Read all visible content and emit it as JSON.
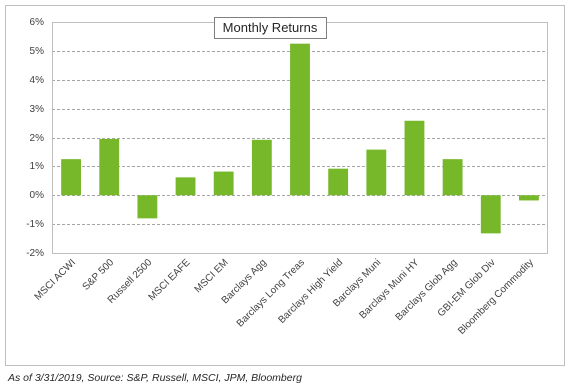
{
  "chart_data": {
    "type": "bar",
    "title": "Monthly Returns",
    "categories": [
      "MSCI ACWI",
      "S&P 500",
      "Russell 2500",
      "MSCI EAFE",
      "MSCI EM",
      "Barclays Agg",
      "Barclays Long Treas",
      "Barclays High Yield",
      "Barclays Muni",
      "Barclays Muni HY",
      "Barclays Glob Agg",
      "GBI-EM Glob Div",
      "Bloomberg Commodity"
    ],
    "values": [
      1.25,
      1.95,
      -0.8,
      0.62,
      0.82,
      1.92,
      5.25,
      0.92,
      1.58,
      2.58,
      1.25,
      -1.32,
      -0.18
    ],
    "color": "#76b82a",
    "ylim": [
      -2,
      6
    ],
    "yticks": [
      {
        "value": -2,
        "label": "-2%"
      },
      {
        "value": -1,
        "label": "-1%"
      },
      {
        "value": 0,
        "label": "0%"
      },
      {
        "value": 1,
        "label": "1%"
      },
      {
        "value": 2,
        "label": "2%"
      },
      {
        "value": 3,
        "label": "3%"
      },
      {
        "value": 4,
        "label": "4%"
      },
      {
        "value": 5,
        "label": "5%"
      },
      {
        "value": 6,
        "label": "6%"
      }
    ],
    "grid": true,
    "source": "As of 3/31/2019, Source: S&P, Russell, MSCI, JPM, Bloomberg"
  }
}
